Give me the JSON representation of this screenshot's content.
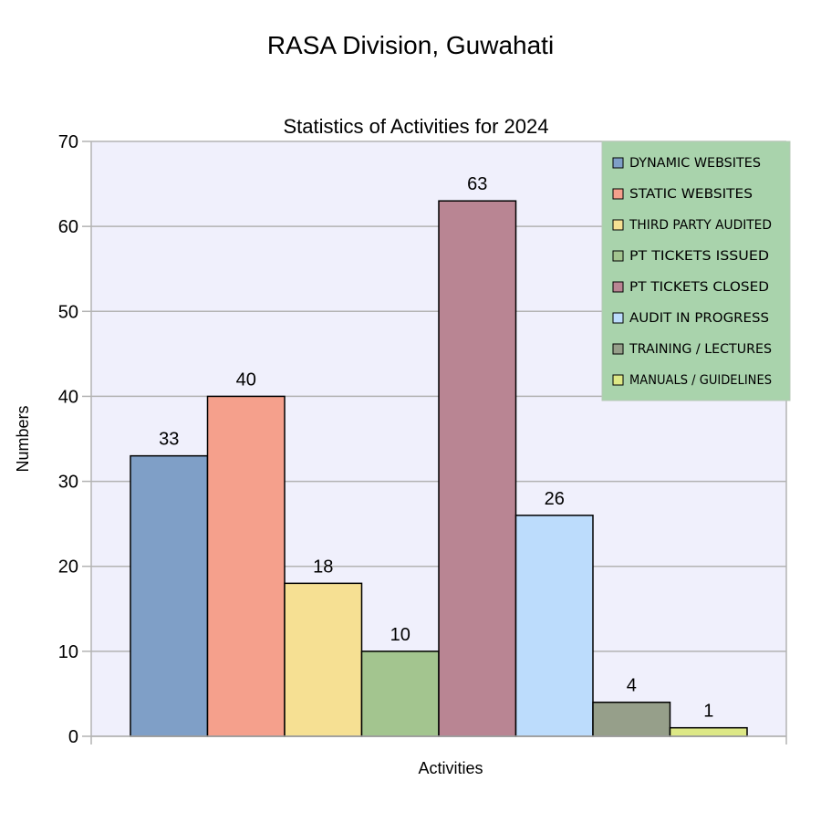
{
  "page_title": "RASA Division, Guwahati",
  "chart_data": {
    "type": "bar",
    "title": "Statistics of Activities for 2024",
    "xlabel": "Activities",
    "ylabel": "Numbers",
    "ylim": [
      0,
      70
    ],
    "yticks": [
      0,
      10,
      20,
      30,
      40,
      50,
      60,
      70
    ],
    "grid": true,
    "legend_placement": "top-right",
    "categories": [
      ""
    ],
    "series": [
      {
        "name": "DYNAMIC WEBSITES",
        "values": [
          33
        ],
        "color": "#7f9fc7"
      },
      {
        "name": "STATIC WEBSITES",
        "values": [
          40
        ],
        "color": "#f5a08c"
      },
      {
        "name": "THIRD PARTY AUDITED",
        "values": [
          18
        ],
        "color": "#f6e093"
      },
      {
        "name": "PT TICKETS ISSUED",
        "values": [
          10
        ],
        "color": "#a3c58f"
      },
      {
        "name": "PT TICKETS CLOSED",
        "values": [
          63
        ],
        "color": "#b98593"
      },
      {
        "name": "AUDIT IN PROGRESS",
        "values": [
          26
        ],
        "color": "#bcdcfc"
      },
      {
        "name": "TRAINING / LECTURES",
        "values": [
          4
        ],
        "color": "#969f8a"
      },
      {
        "name": "MANUALS / GUIDELINES",
        "values": [
          1
        ],
        "color": "#dde886"
      }
    ],
    "colors": {
      "plot_background": "#f0f0fc",
      "legend_background": "#a9d3ac",
      "gridline": "#b3b3b3"
    }
  }
}
